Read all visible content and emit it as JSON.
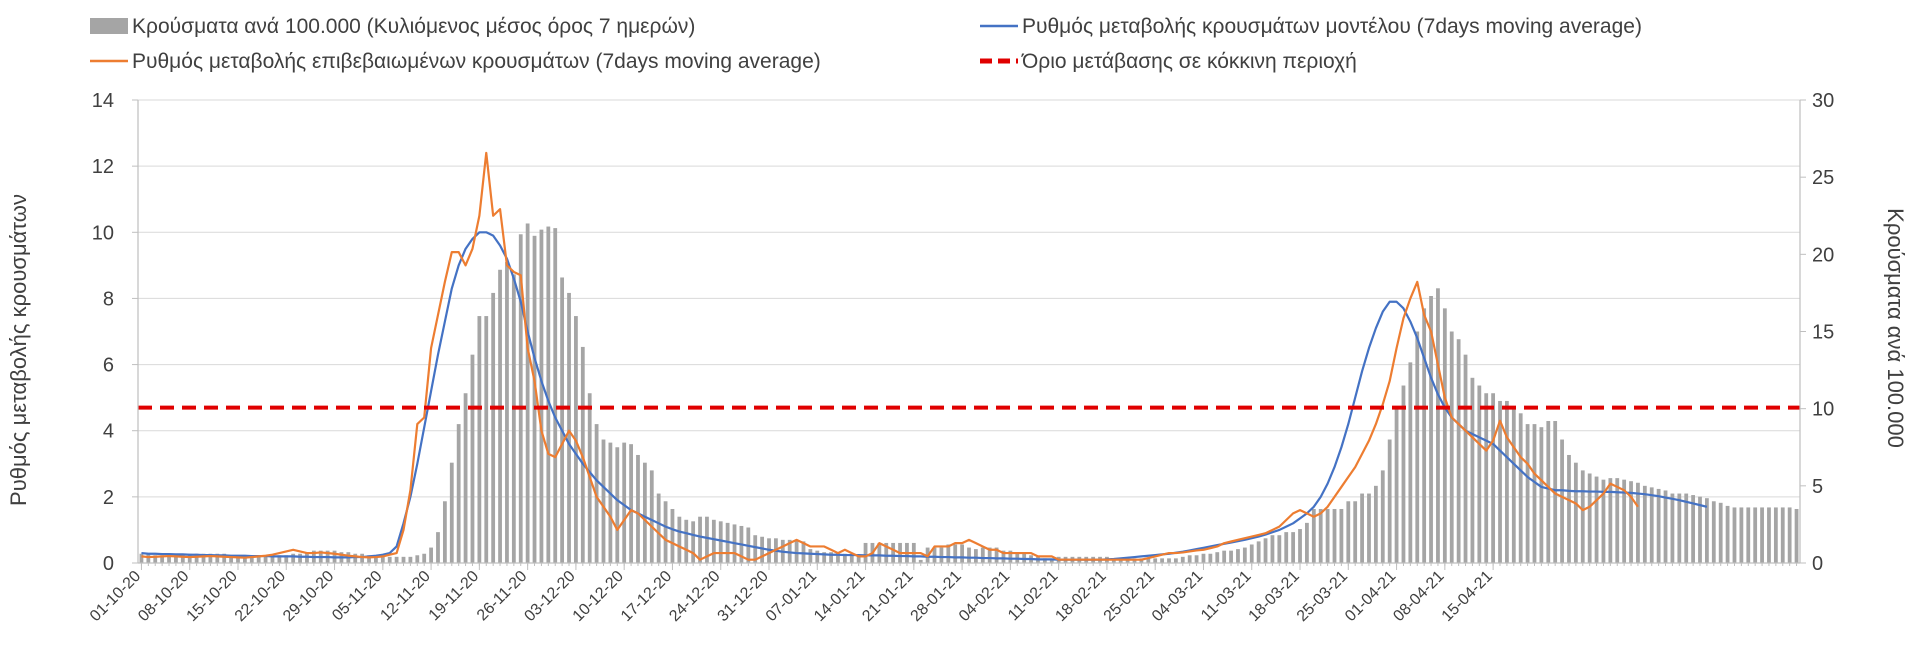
{
  "chart_data": {
    "type": "bar",
    "legend": {
      "placement": "top",
      "bars": "Κρούσματα ανά 100.000 (Κυλιόμενος μέσος όρος 7 ημερών)",
      "model": "Ρυθμός μεταβολής κρουσμάτων μοντέλου (7days moving average)",
      "confirmed": "Ρυθμός μεταβολής επιβεβαιωμένων κρουσμάτων (7days moving average)",
      "threshold": "Όριο μετάβασης σε κόκκινη περιοχή"
    },
    "ylabel": "Ρυθμός μεταβολής κρουσμάτων",
    "y2label": "Κρούσματα ανά 100.000",
    "ylim": [
      0,
      14
    ],
    "y2lim": [
      0,
      30
    ],
    "yticks": [
      "0",
      "2",
      "4",
      "6",
      "8",
      "10",
      "12",
      "14"
    ],
    "y2ticks": [
      "0",
      "5",
      "10",
      "15",
      "20",
      "25",
      "30"
    ],
    "x_tick_labels": [
      "01-10-20",
      "08-10-20",
      "15-10-20",
      "22-10-20",
      "29-10-20",
      "05-11-20",
      "12-11-20",
      "19-11-20",
      "26-11-20",
      "03-12-20",
      "10-12-20",
      "17-12-20",
      "24-12-20",
      "31-12-20",
      "07-01-21",
      "14-01-21",
      "21-01-21",
      "28-01-21",
      "04-02-21",
      "11-02-21",
      "18-02-21",
      "25-02-21",
      "04-03-21",
      "11-03-21",
      "18-03-21",
      "25-03-21",
      "01-04-21",
      "08-04-21",
      "15-04-21"
    ],
    "grid": true,
    "threshold_value": 4.7,
    "series": [
      {
        "name": "Κρούσματα ανά 100.000 (Κυλιόμενος μέσος όρος 7 ημερών)",
        "type": "bar",
        "axis": "right",
        "color": "#a5a5a5",
        "values": [
          0.6,
          0.6,
          0.5,
          0.5,
          0.5,
          0.5,
          0.5,
          0.6,
          0.6,
          0.6,
          0.6,
          0.6,
          0.6,
          0.5,
          0.5,
          0.5,
          0.4,
          0.4,
          0.4,
          0.5,
          0.5,
          0.5,
          0.6,
          0.6,
          0.7,
          0.8,
          0.8,
          0.8,
          0.8,
          0.7,
          0.7,
          0.6,
          0.6,
          0.5,
          0.5,
          0.4,
          0.4,
          0.4,
          0.4,
          0.4,
          0.5,
          0.6,
          1.0,
          2.0,
          4.0,
          6.5,
          9.0,
          11.0,
          13.5,
          16.0,
          16.0,
          17.5,
          19.0,
          19.5,
          18.7,
          21.3,
          22.0,
          21.2,
          21.6,
          21.8,
          21.7,
          18.5,
          17.5,
          16.0,
          14.0,
          11.0,
          9.0,
          8.0,
          7.8,
          7.5,
          7.8,
          7.7,
          7.0,
          6.5,
          6.0,
          4.5,
          4.0,
          3.5,
          3.0,
          2.8,
          2.7,
          3.0,
          3.0,
          2.8,
          2.7,
          2.6,
          2.5,
          2.4,
          2.3,
          1.8,
          1.7,
          1.6,
          1.6,
          1.5,
          1.5,
          1.4,
          1.4,
          0.9,
          0.8,
          0.7,
          0.7,
          0.6,
          0.6,
          0.6,
          0.5,
          1.3,
          1.3,
          1.3,
          1.3,
          1.3,
          1.3,
          1.3,
          1.3,
          0.2,
          1.0,
          1.0,
          1.0,
          1.2,
          1.2,
          1.2,
          1.0,
          0.9,
          1.0,
          1.0,
          1.0,
          0.8,
          0.8,
          0.6,
          0.6,
          0.5,
          0.4,
          0.3,
          0.2,
          0.4,
          0.4,
          0.4,
          0.4,
          0.4,
          0.4,
          0.4,
          0.4,
          0.3,
          0.3,
          0.3,
          0.3,
          0.3,
          0.3,
          0.3,
          0.3,
          0.3,
          0.3,
          0.4,
          0.5,
          0.5,
          0.6,
          0.6,
          0.7,
          0.8,
          0.8,
          0.9,
          1.0,
          1.2,
          1.4,
          1.6,
          1.8,
          1.8,
          2.0,
          2.0,
          2.2,
          2.6,
          3.5,
          3.5,
          3.5,
          3.5,
          3.5,
          4.0,
          4.0,
          4.5,
          4.5,
          5.0,
          6.0,
          8.0,
          10.0,
          11.5,
          13.0,
          15.0,
          16.5,
          17.3,
          17.8,
          16.5,
          15.0,
          14.5,
          13.5,
          12.0,
          11.5,
          11.0,
          11.0,
          10.5,
          10.5,
          10.0,
          9.7,
          9.0,
          9.0,
          8.8,
          9.2,
          9.2,
          8.0,
          7.0,
          6.5,
          6.0,
          5.8,
          5.6,
          5.4,
          5.5,
          5.5,
          5.4,
          5.3,
          5.2,
          5.0,
          4.9,
          4.8,
          4.7,
          4.5,
          4.5,
          4.5,
          4.4,
          4.3,
          4.2,
          4.0,
          3.9,
          3.7,
          3.6,
          3.6,
          3.6,
          3.6,
          3.6,
          3.6,
          3.6,
          3.6,
          3.6,
          3.5
        ]
      },
      {
        "name": "Ρυθμός μεταβολής κρουσμάτων μοντέλου (7days moving average)",
        "type": "line",
        "axis": "left",
        "color": "#4472c4",
        "values": [
          0.3,
          0.28,
          0.28,
          0.27,
          0.27,
          0.26,
          0.26,
          0.25,
          0.25,
          0.24,
          0.24,
          0.23,
          0.23,
          0.22,
          0.22,
          0.22,
          0.21,
          0.21,
          0.21,
          0.2,
          0.2,
          0.2,
          0.2,
          0.19,
          0.19,
          0.18,
          0.18,
          0.18,
          0.17,
          0.17,
          0.17,
          0.18,
          0.18,
          0.2,
          0.22,
          0.25,
          0.3,
          0.5,
          1.2,
          2.0,
          3.0,
          4.1,
          5.2,
          6.3,
          7.3,
          8.3,
          9.0,
          9.5,
          9.8,
          10.0,
          10.0,
          9.9,
          9.6,
          9.2,
          8.6,
          7.9,
          7.0,
          6.2,
          5.5,
          4.9,
          4.4,
          4.0,
          3.6,
          3.3,
          3.0,
          2.75,
          2.5,
          2.3,
          2.1,
          1.9,
          1.75,
          1.6,
          1.5,
          1.4,
          1.3,
          1.2,
          1.1,
          1.02,
          0.95,
          0.9,
          0.85,
          0.8,
          0.76,
          0.72,
          0.68,
          0.64,
          0.6,
          0.56,
          0.52,
          0.48,
          0.44,
          0.4,
          0.37,
          0.34,
          0.32,
          0.3,
          0.29,
          0.28,
          0.27,
          0.26,
          0.25,
          0.25,
          0.24,
          0.24,
          0.24,
          0.23,
          0.23,
          0.23,
          0.22,
          0.22,
          0.21,
          0.21,
          0.2,
          0.2,
          0.19,
          0.19,
          0.18,
          0.18,
          0.17,
          0.17,
          0.16,
          0.16,
          0.15,
          0.15,
          0.14,
          0.14,
          0.13,
          0.13,
          0.12,
          0.12,
          0.11,
          0.11,
          0.11,
          0.1,
          0.1,
          0.1,
          0.1,
          0.1,
          0.1,
          0.1,
          0.11,
          0.12,
          0.14,
          0.16,
          0.18,
          0.2,
          0.22,
          0.24,
          0.26,
          0.28,
          0.31,
          0.34,
          0.38,
          0.42,
          0.46,
          0.5,
          0.54,
          0.58,
          0.62,
          0.66,
          0.7,
          0.75,
          0.8,
          0.86,
          0.93,
          1.0,
          1.1,
          1.2,
          1.35,
          1.5,
          1.7,
          2.0,
          2.4,
          2.9,
          3.5,
          4.2,
          5.0,
          5.8,
          6.5,
          7.1,
          7.6,
          7.9,
          7.9,
          7.7,
          7.3,
          6.8,
          6.2,
          5.6,
          5.1,
          4.7,
          4.4,
          4.2,
          4.0,
          3.9,
          3.8,
          3.7,
          3.6,
          3.4,
          3.2,
          3.0,
          2.8,
          2.6,
          2.45,
          2.3,
          2.25,
          2.2,
          2.2,
          2.18,
          2.17,
          2.17,
          2.16,
          2.16,
          2.15,
          2.15,
          2.14,
          2.13,
          2.12,
          2.1,
          2.08,
          2.05,
          2.02,
          1.98,
          1.94,
          1.9,
          1.85,
          1.8,
          1.75,
          1.7
        ]
      },
      {
        "name": "Ρυθμός μεταβολής επιβεβαιωμένων κρουσμάτων (7days moving average)",
        "type": "line",
        "axis": "left",
        "color": "#ed7d31",
        "values": [
          0.2,
          0.18,
          0.19,
          0.2,
          0.21,
          0.2,
          0.19,
          0.18,
          0.19,
          0.2,
          0.21,
          0.2,
          0.19,
          0.18,
          0.17,
          0.16,
          0.18,
          0.2,
          0.22,
          0.25,
          0.3,
          0.35,
          0.4,
          0.35,
          0.3,
          0.3,
          0.32,
          0.3,
          0.28,
          0.25,
          0.22,
          0.2,
          0.18,
          0.17,
          0.18,
          0.2,
          0.25,
          0.3,
          1.0,
          2.2,
          4.2,
          4.4,
          6.5,
          7.5,
          8.5,
          9.4,
          9.4,
          9.0,
          9.5,
          10.5,
          12.4,
          10.5,
          10.7,
          9.0,
          8.8,
          8.7,
          6.5,
          5.5,
          4.0,
          3.3,
          3.2,
          3.6,
          4.0,
          3.7,
          3.2,
          2.6,
          2.0,
          1.7,
          1.4,
          1.0,
          1.3,
          1.6,
          1.5,
          1.3,
          1.1,
          0.9,
          0.7,
          0.6,
          0.5,
          0.4,
          0.3,
          0.1,
          0.2,
          0.3,
          0.3,
          0.3,
          0.3,
          0.2,
          0.1,
          0.1,
          0.2,
          0.3,
          0.4,
          0.5,
          0.6,
          0.7,
          0.6,
          0.5,
          0.5,
          0.5,
          0.4,
          0.3,
          0.4,
          0.3,
          0.2,
          0.2,
          0.3,
          0.6,
          0.5,
          0.4,
          0.3,
          0.3,
          0.3,
          0.3,
          0.2,
          0.5,
          0.5,
          0.5,
          0.6,
          0.6,
          0.7,
          0.6,
          0.5,
          0.4,
          0.4,
          0.3,
          0.3,
          0.3,
          0.3,
          0.3,
          0.2,
          0.2,
          0.2,
          0.1,
          0.1,
          0.1,
          0.1,
          0.1,
          0.1,
          0.1,
          0.1,
          0.1,
          0.1,
          0.1,
          0.1,
          0.1,
          0.15,
          0.2,
          0.25,
          0.3,
          0.3,
          0.32,
          0.35,
          0.38,
          0.4,
          0.45,
          0.5,
          0.6,
          0.65,
          0.7,
          0.75,
          0.8,
          0.85,
          0.9,
          1.0,
          1.1,
          1.3,
          1.5,
          1.6,
          1.5,
          1.4,
          1.5,
          1.7,
          2.0,
          2.3,
          2.6,
          2.9,
          3.3,
          3.7,
          4.2,
          4.8,
          5.5,
          6.5,
          7.4,
          8.0,
          8.5,
          7.5,
          7.0,
          6.0,
          5.0,
          4.4,
          4.2,
          4.0,
          3.8,
          3.6,
          3.4,
          3.7,
          4.3,
          3.8,
          3.5,
          3.2,
          3.0,
          2.7,
          2.5,
          2.3,
          2.1,
          2.0,
          1.9,
          1.8,
          1.6,
          1.7,
          1.9,
          2.1,
          2.4,
          2.3,
          2.2,
          2.0,
          1.7
        ]
      },
      {
        "name": "Όριο μετάβασης σε κόκκινη περιοχή",
        "type": "line",
        "axis": "left",
        "color": "#e00000",
        "values": [
          4.7
        ]
      }
    ]
  }
}
